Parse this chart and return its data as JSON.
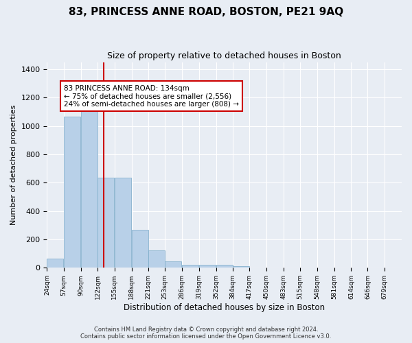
{
  "title": "83, PRINCESS ANNE ROAD, BOSTON, PE21 9AQ",
  "subtitle": "Size of property relative to detached houses in Boston",
  "xlabel": "Distribution of detached houses by size in Boston",
  "ylabel": "Number of detached properties",
  "footer_line1": "Contains HM Land Registry data © Crown copyright and database right 2024.",
  "footer_line2": "Contains public sector information licensed under the Open Government Licence v3.0.",
  "bins": [
    24,
    57,
    90,
    122,
    155,
    188,
    221,
    253,
    286,
    319,
    352,
    384,
    417,
    450,
    483,
    515,
    548,
    581,
    614,
    646,
    679
  ],
  "bar_heights": [
    65,
    1065,
    1155,
    635,
    635,
    270,
    125,
    45,
    22,
    22,
    22,
    10,
    0,
    0,
    0,
    0,
    0,
    0,
    0,
    0
  ],
  "bar_color": "#b8d0e8",
  "bar_edge_color": "#7aaac8",
  "property_size": 134,
  "red_line_color": "#cc0000",
  "annotation_text": "83 PRINCESS ANNE ROAD: 134sqm\n← 75% of detached houses are smaller (2,556)\n24% of semi-detached houses are larger (808) →",
  "annotation_box_color": "#ffffff",
  "annotation_box_edge": "#cc0000",
  "ylim": [
    0,
    1450
  ],
  "yticks": [
    0,
    200,
    400,
    600,
    800,
    1000,
    1200,
    1400
  ],
  "bg_color": "#e8edf4",
  "plot_bg_color": "#e8edf4",
  "grid_color": "#ffffff",
  "title_fontsize": 11,
  "subtitle_fontsize": 9
}
